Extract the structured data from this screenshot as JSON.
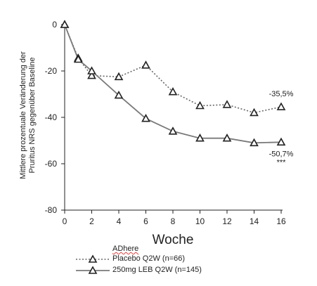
{
  "chart_data": {
    "type": "line",
    "x": [
      0,
      1,
      2,
      4,
      6,
      8,
      10,
      12,
      14,
      16
    ],
    "xticks": [
      "0",
      "2",
      "4",
      "6",
      "8",
      "10",
      "12",
      "14",
      "16"
    ],
    "yticks": [
      "0",
      "-20",
      "-40",
      "-60",
      "-80"
    ],
    "xlim": [
      0,
      16
    ],
    "ylim": [
      -80,
      0
    ],
    "xlabel": "Woche",
    "ylabel_line1": "Mittlere prozentuale Veränderung der",
    "ylabel_line2": "Pruritus NRS gegenüber Baseline",
    "grid": false,
    "series": [
      {
        "name": "Placebo Q2W (n=66)",
        "style": "dotted",
        "color": "#666666",
        "values": [
          0,
          -14.5,
          -22,
          -22.5,
          -17.5,
          -29,
          -35,
          -34.5,
          -38,
          -35.5
        ],
        "end_label": "-35,5%"
      },
      {
        "name": "250mg LEB Q2W (n=145)",
        "style": "solid",
        "color": "#7a7a7a",
        "values": [
          0,
          -15,
          -20,
          -30.5,
          -40.5,
          -46,
          -49,
          -49,
          -51,
          -50.7
        ],
        "end_label": "-50,7%",
        "significance": "***"
      }
    ]
  },
  "legend": {
    "heading": "ADhere",
    "placebo_label": "Placebo Q2W (n=66)",
    "leb_label": "250mg LEB Q2W (n=145)"
  }
}
